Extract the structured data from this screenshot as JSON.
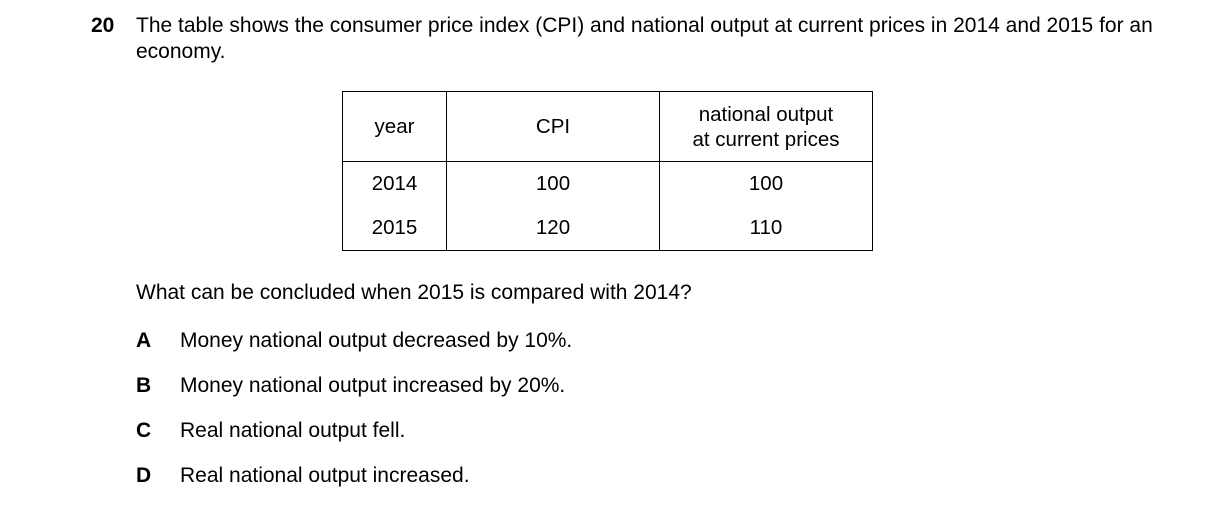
{
  "question": {
    "number": "20",
    "stem": "The table shows the consumer price index (CPI) and national output at current prices in 2014 and 2015 for an economy.",
    "prompt": "What can be concluded when 2015 is compared with 2014?"
  },
  "table": {
    "headers": {
      "year": "year",
      "cpi": "CPI",
      "output_line1": "national output",
      "output_line2": "at current prices"
    },
    "rows": [
      {
        "year": "2014",
        "cpi": "100",
        "output": "100"
      },
      {
        "year": "2015",
        "cpi": "120",
        "output": "110"
      }
    ]
  },
  "options": [
    {
      "letter": "A",
      "text": "Money national output decreased by 10%."
    },
    {
      "letter": "B",
      "text": "Money national output increased by 20%."
    },
    {
      "letter": "C",
      "text": "Real national output fell."
    },
    {
      "letter": "D",
      "text": "Real national output increased."
    }
  ]
}
